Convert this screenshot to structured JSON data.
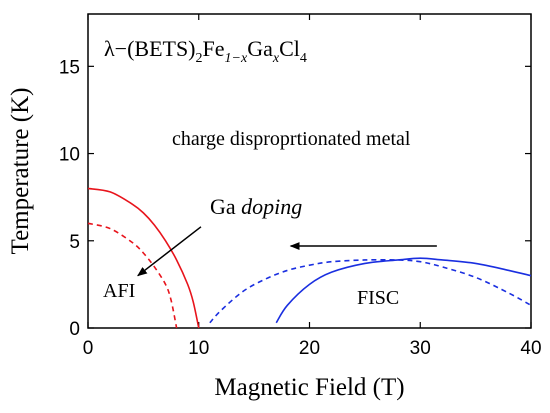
{
  "chart_data": {
    "type": "line",
    "title": "",
    "xlabel": "Magnetic Field (T)",
    "ylabel": "Temperature (K)",
    "xlim": [
      0,
      40
    ],
    "ylim": [
      0,
      18
    ],
    "xticks": [
      0,
      10,
      20,
      30,
      40
    ],
    "yticks": [
      0,
      5,
      10,
      15
    ],
    "grid": false,
    "legend": "none",
    "compound": {
      "prefix": "λ−(BETS)",
      "sub1": "2",
      "mid1": "Fe",
      "sub2": "1−x",
      "mid2": "Ga",
      "sub3": "x",
      "mid3": "Cl",
      "sub4": "4"
    },
    "annotations": {
      "region_metal": "charge disproprtionated metal",
      "doping_prefix": "Ga ",
      "doping_italic": "doping",
      "afi": "AFI",
      "fisc": "FISC"
    },
    "colors": {
      "afi_curves": "#e8141c",
      "fisc_curves": "#1a2fe0",
      "arrows": "#000000"
    },
    "series": [
      {
        "style": "solid",
        "color": "#e8141c",
        "x": [
          0,
          2,
          4,
          5,
          6,
          7,
          8,
          9,
          9.5,
          10
        ],
        "y": [
          8.0,
          7.8,
          7.1,
          6.6,
          5.9,
          5.0,
          3.9,
          2.5,
          1.5,
          0
        ]
      },
      {
        "style": "dashed",
        "color": "#e8141c",
        "x": [
          0,
          2,
          4,
          5,
          6,
          7,
          7.5,
          8
        ],
        "y": [
          6.0,
          5.7,
          4.9,
          4.3,
          3.5,
          2.5,
          1.6,
          0
        ]
      },
      {
        "style": "solid",
        "color": "#1a2fe0",
        "x": [
          17,
          18,
          20,
          22,
          25,
          28,
          30,
          32,
          35,
          38,
          40
        ],
        "y": [
          0.3,
          1.3,
          2.5,
          3.2,
          3.7,
          3.9,
          4.0,
          3.9,
          3.7,
          3.3,
          3.0
        ]
      },
      {
        "style": "dashed",
        "color": "#1a2fe0",
        "x": [
          11,
          12,
          14,
          16,
          18,
          20,
          22,
          25,
          28,
          30,
          32,
          35,
          38,
          40
        ],
        "y": [
          0.3,
          1.0,
          2.1,
          2.8,
          3.3,
          3.6,
          3.8,
          3.9,
          3.9,
          3.8,
          3.5,
          2.9,
          2.0,
          1.3
        ]
      }
    ],
    "arrows": [
      {
        "x1": 31.5,
        "y1": 4.7,
        "x2": 18.3,
        "y2": 4.7
      },
      {
        "x1": 10.2,
        "y1": 5.8,
        "x2": 4.5,
        "y2": 3.0
      }
    ]
  }
}
